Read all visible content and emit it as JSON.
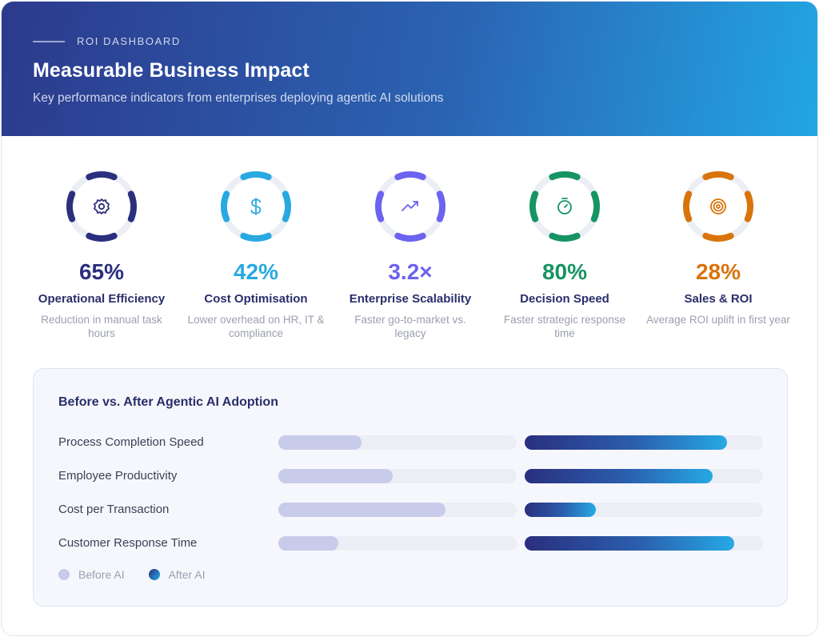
{
  "header": {
    "eyebrow": "ROI DASHBOARD",
    "title": "Measurable Business Impact",
    "subtitle": "Key performance indicators from enterprises deploying agentic AI solutions"
  },
  "kpis": [
    {
      "value": "65%",
      "label": "Operational Efficiency",
      "desc": "Reduction in manual task hours",
      "icon": "gear-icon",
      "color": "#2a2f7e"
    },
    {
      "value": "42%",
      "label": "Cost Optimisation",
      "desc": "Lower overhead on HR, IT & compliance",
      "icon": "dollar-icon",
      "color": "#29a9e1"
    },
    {
      "value": "3.2×",
      "label": "Enterprise Scalability",
      "desc": "Faster go-to-market vs. legacy",
      "icon": "trending-up-icon",
      "color": "#6c63f0"
    },
    {
      "value": "80%",
      "label": "Decision Speed",
      "desc": "Faster strategic response time",
      "icon": "stopwatch-icon",
      "color": "#169463"
    },
    {
      "value": "28%",
      "label": "Sales & ROI",
      "desc": "Average ROI uplift in first year",
      "icon": "target-icon",
      "color": "#d9740c"
    }
  ],
  "comparison": {
    "title": "Before vs. After Agentic AI Adoption",
    "rows": [
      {
        "label": "Process Completion Speed",
        "before": 0.35,
        "after": 0.85
      },
      {
        "label": "Employee Productivity",
        "before": 0.48,
        "after": 0.79
      },
      {
        "label": "Cost per Transaction",
        "before": 0.7,
        "after": 0.3
      },
      {
        "label": "Customer Response Time",
        "before": 0.25,
        "after": 0.88
      }
    ],
    "legend": {
      "before": "Before AI",
      "after": "After AI"
    }
  }
}
